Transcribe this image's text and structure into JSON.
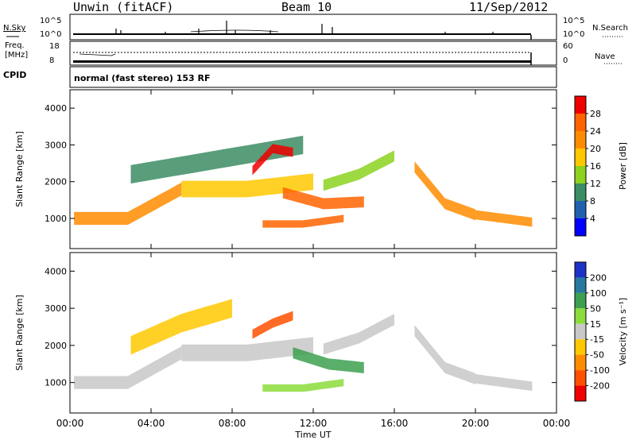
{
  "header": {
    "radar": "Unwin (fitACF)",
    "beam": "Beam 10",
    "date": "11/Sep/2012"
  },
  "panels": {
    "nsky_label": "N.Sky",
    "nsearch_label": "N.Search",
    "nsky_ticks": [
      "10^5",
      "10^0"
    ],
    "nsearch_ticks": [
      "10^5",
      "10^0"
    ],
    "freq_label": "Freq.",
    "freq_unit": "[MHz]",
    "freq_ticks": [
      "18",
      "8"
    ],
    "nave_label": "Nave",
    "nave_ticks": [
      "60",
      "0"
    ],
    "cpid_label": "CPID",
    "mode_text": "normal (fast stereo) 153 RF"
  },
  "chart_data": [
    {
      "type": "heatmap",
      "name": "power",
      "xlabel": "Time UT",
      "ylabel": "Slant Range [km]",
      "x_ticks": [
        "00:00",
        "04:00",
        "08:00",
        "12:00",
        "16:00",
        "20:00",
        "00:00"
      ],
      "x_range_hours": [
        0,
        24
      ],
      "y_ticks": [
        1000,
        2000,
        3000,
        4000
      ],
      "ylim": [
        180,
        4500
      ],
      "colorbar": {
        "label": "Power [dB]",
        "ticks": [
          4,
          8,
          12,
          16,
          20,
          24,
          28
        ],
        "colors": [
          "#0000ff",
          "#2060b0",
          "#3c8c64",
          "#8cd21e",
          "#ffc800",
          "#ff8c00",
          "#ff6400",
          "#f00000"
        ]
      },
      "bands": [
        {
          "t0": 0.2,
          "t1": 5.5,
          "r0": 1000,
          "r1": 1000,
          "r2": 1800,
          "dr": 350,
          "value": 22
        },
        {
          "t0": 5.5,
          "t1": 12.0,
          "r0": 1800,
          "r1": 1800,
          "r2": 2000,
          "dr": 450,
          "value": 18
        },
        {
          "t0": 3.0,
          "t1": 11.5,
          "r0": 2200,
          "r1": 2600,
          "r2": 3000,
          "dr": 500,
          "value": 10
        },
        {
          "t0": 9.0,
          "t1": 11.0,
          "r0": 2300,
          "r1": 2900,
          "r2": 2800,
          "dr": 250,
          "value": 28
        },
        {
          "t0": 10.5,
          "t1": 14.5,
          "r0": 1700,
          "r1": 1400,
          "r2": 1450,
          "dr": 300,
          "value": 25
        },
        {
          "t0": 9.5,
          "t1": 13.5,
          "r0": 850,
          "r1": 850,
          "r2": 1000,
          "dr": 200,
          "value": 24
        },
        {
          "t0": 12.5,
          "t1": 16.0,
          "r0": 1900,
          "r1": 2200,
          "r2": 2700,
          "dr": 300,
          "value": 14
        },
        {
          "t0": 17.0,
          "t1": 20.0,
          "r0": 2400,
          "r1": 1400,
          "r2": 1100,
          "dr": 300,
          "value": 20
        },
        {
          "t0": 20.0,
          "t1": 22.8,
          "r0": 1100,
          "r1": 1000,
          "r2": 900,
          "dr": 250,
          "value": 22
        }
      ]
    },
    {
      "type": "heatmap",
      "name": "velocity",
      "xlabel": "Time UT",
      "ylabel": "Slant Range [km]",
      "x_ticks": [
        "00:00",
        "04:00",
        "08:00",
        "12:00",
        "16:00",
        "20:00",
        "00:00"
      ],
      "x_range_hours": [
        0,
        24
      ],
      "y_ticks": [
        1000,
        2000,
        3000,
        4000
      ],
      "ylim": [
        180,
        4500
      ],
      "colorbar": {
        "label": "Velocity [m s⁻¹]",
        "ticks": [
          200,
          100,
          50,
          15,
          -15,
          -50,
          -100,
          -200
        ],
        "colors": [
          "#1e32c8",
          "#2878a0",
          "#3ca050",
          "#8cdc3c",
          "#c8c8c8",
          "#ffc800",
          "#ff8c00",
          "#ff5000",
          "#f00000"
        ]
      },
      "bands": [
        {
          "t0": 0.2,
          "t1": 5.5,
          "r0": 1000,
          "r1": 1000,
          "r2": 1800,
          "dr": 350,
          "value": 0
        },
        {
          "t0": 5.5,
          "t1": 12.0,
          "r0": 1800,
          "r1": 1800,
          "r2": 2000,
          "dr": 450,
          "value": 0
        },
        {
          "t0": 3.0,
          "t1": 8.0,
          "r0": 2000,
          "r1": 2600,
          "r2": 3000,
          "dr": 500,
          "value": -40
        },
        {
          "t0": 9.0,
          "t1": 11.0,
          "r0": 2300,
          "r1": 2600,
          "r2": 2800,
          "dr": 250,
          "value": -200
        },
        {
          "t0": 11.0,
          "t1": 14.5,
          "r0": 1800,
          "r1": 1500,
          "r2": 1400,
          "dr": 300,
          "value": 60
        },
        {
          "t0": 9.5,
          "t1": 13.5,
          "r0": 850,
          "r1": 850,
          "r2": 1000,
          "dr": 200,
          "value": 30
        },
        {
          "t0": 12.5,
          "t1": 16.0,
          "r0": 1900,
          "r1": 2200,
          "r2": 2700,
          "dr": 300,
          "value": 0
        },
        {
          "t0": 17.0,
          "t1": 20.0,
          "r0": 2400,
          "r1": 1400,
          "r2": 1100,
          "dr": 300,
          "value": 0
        },
        {
          "t0": 20.0,
          "t1": 22.8,
          "r0": 1100,
          "r1": 1000,
          "r2": 900,
          "dr": 250,
          "value": 0
        }
      ]
    }
  ]
}
